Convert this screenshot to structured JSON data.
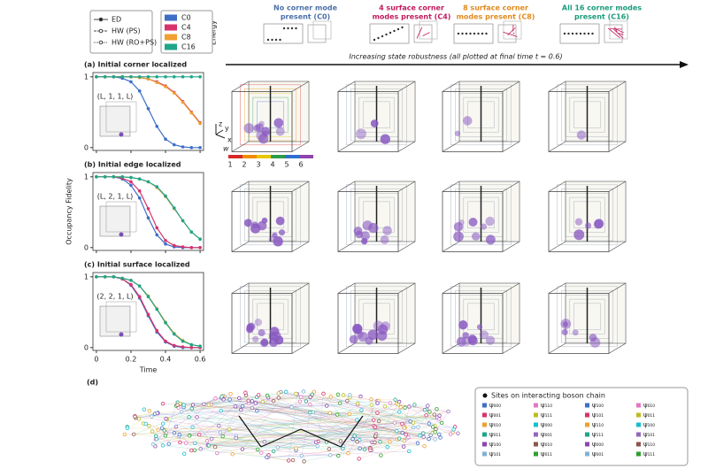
{
  "header": {
    "columns": [
      {
        "line1": "No corner mode",
        "line2": "present (C0)",
        "color": "#4a6fa8"
      },
      {
        "line1": "4 surface corner",
        "line2": "modes present (C4)",
        "color": "#c2185b"
      },
      {
        "line1": "8 surface corner",
        "line2": "modes present (C8)",
        "color": "#e08a1e"
      },
      {
        "line1": "All 16 corner modes",
        "line2": "present (C16)",
        "color": "#1a9a7a"
      }
    ],
    "energy_label": "Energy",
    "arrow_text": "Increasing state robustness (all plotted at final time t = 0.6)"
  },
  "style_legend": [
    "ED",
    "HW (PS)",
    "HW (RO+PS)"
  ],
  "axes_icon": [
    "z",
    "y",
    "x"
  ],
  "colorbar": {
    "label": "w",
    "ticks": [
      1,
      2,
      3,
      4,
      5,
      6
    ],
    "colors": [
      "#d62828",
      "#f08c00",
      "#e9c700",
      "#2a9d4a",
      "#2f6fd0",
      "#8e44ad"
    ]
  },
  "chart_data": [
    {
      "type": "line",
      "title": "(a) Initial corner localized",
      "inset_label": "(L, 1, 1, L)",
      "x": [
        0,
        0.05,
        0.1,
        0.15,
        0.2,
        0.25,
        0.3,
        0.35,
        0.4,
        0.45,
        0.5,
        0.55,
        0.6
      ],
      "xlim": [
        -0.02,
        0.62
      ],
      "ylim": [
        -0.04,
        1.06
      ],
      "xticks": [
        0,
        0.2,
        0.4,
        0.6
      ],
      "yticks": [
        0,
        1
      ],
      "xtick_labels": false,
      "series": [
        {
          "name": "C0",
          "color": "#3d6fc6",
          "values": [
            1,
            1,
            1,
            0.98,
            0.93,
            0.8,
            0.55,
            0.3,
            0.12,
            0.04,
            0.01,
            0,
            0
          ]
        },
        {
          "name": "C4",
          "color": "#d6336c",
          "values": [
            1,
            1,
            1,
            1,
            1,
            0.99,
            0.97,
            0.93,
            0.87,
            0.78,
            0.65,
            0.5,
            0.35
          ]
        },
        {
          "name": "C8",
          "color": "#f0a030",
          "values": [
            1,
            1,
            1,
            1,
            1,
            0.99,
            0.97,
            0.92,
            0.86,
            0.77,
            0.64,
            0.49,
            0.34
          ]
        },
        {
          "name": "C16",
          "color": "#1fa58a",
          "values": [
            1,
            1,
            1,
            1,
            1,
            1,
            1,
            1,
            1,
            1,
            1,
            1,
            1
          ]
        }
      ]
    },
    {
      "type": "line",
      "title": "(b) Initial edge localized",
      "inset_label": "(L, 2, 1, L)",
      "ylabel": "Occupancy Fidelity",
      "x": [
        0,
        0.05,
        0.1,
        0.15,
        0.2,
        0.25,
        0.3,
        0.35,
        0.4,
        0.45,
        0.5,
        0.55,
        0.6
      ],
      "xlim": [
        -0.02,
        0.62
      ],
      "ylim": [
        -0.04,
        1.06
      ],
      "xticks": [
        0,
        0.2,
        0.4,
        0.6
      ],
      "yticks": [
        0,
        1
      ],
      "xtick_labels": false,
      "series": [
        {
          "name": "C0",
          "color": "#3d6fc6",
          "values": [
            1,
            1,
            1,
            0.97,
            0.88,
            0.7,
            0.42,
            0.18,
            0.05,
            0.01,
            0,
            0,
            0
          ]
        },
        {
          "name": "C4",
          "color": "#d6336c",
          "values": [
            1,
            1,
            1,
            0.98,
            0.93,
            0.8,
            0.55,
            0.28,
            0.1,
            0.03,
            0.01,
            0,
            0
          ]
        },
        {
          "name": "C8",
          "color": "#f0a030",
          "values": [
            1,
            1,
            1,
            1,
            0.99,
            0.97,
            0.93,
            0.85,
            0.72,
            0.55,
            0.38,
            0.22,
            0.12
          ]
        },
        {
          "name": "C16",
          "color": "#1fa58a",
          "values": [
            1,
            1,
            1,
            1,
            0.99,
            0.97,
            0.93,
            0.86,
            0.73,
            0.56,
            0.38,
            0.22,
            0.12
          ]
        }
      ]
    },
    {
      "type": "line",
      "title": "(c) Initial surface localized",
      "inset_label": "(2, 2, 1, L)",
      "xlabel": "Time",
      "x": [
        0,
        0.05,
        0.1,
        0.15,
        0.2,
        0.25,
        0.3,
        0.35,
        0.4,
        0.45,
        0.5,
        0.55,
        0.6
      ],
      "xlim": [
        -0.02,
        0.62
      ],
      "ylim": [
        -0.04,
        1.06
      ],
      "xticks": [
        0,
        0.2,
        0.4,
        0.6
      ],
      "yticks": [
        0,
        1
      ],
      "xtick_labels": true,
      "series": [
        {
          "name": "C0",
          "color": "#3d6fc6",
          "values": [
            1,
            1,
            1,
            0.97,
            0.88,
            0.7,
            0.45,
            0.22,
            0.08,
            0.02,
            0,
            0,
            0
          ]
        },
        {
          "name": "C4",
          "color": "#d6336c",
          "values": [
            1,
            1,
            1,
            0.97,
            0.89,
            0.72,
            0.47,
            0.24,
            0.09,
            0.03,
            0.01,
            0,
            0
          ]
        },
        {
          "name": "C8",
          "color": "#f0a030",
          "values": [
            1,
            1,
            1,
            0.98,
            0.95,
            0.87,
            0.73,
            0.55,
            0.36,
            0.2,
            0.1,
            0.04,
            0.02
          ]
        },
        {
          "name": "C16",
          "color": "#1fa58a",
          "values": [
            1,
            1,
            1,
            0.98,
            0.95,
            0.87,
            0.72,
            0.54,
            0.35,
            0.19,
            0.09,
            0.04,
            0.02
          ]
        }
      ]
    }
  ],
  "panel_d": {
    "label": "(d)",
    "legend_title": "Sites on interacting boson chain",
    "entries": [
      "ψ₀₀₀",
      "ψ₀₀₁",
      "ψ₀₁₀",
      "ψ₀₁₁",
      "ψ₁₀₀",
      "ψ₁₀₁",
      "ψ₁₁₀",
      "ψ₁₁₁",
      "ψ₀₀₀",
      "ψ₀₀₁",
      "ψ₀₁₀",
      "ψ₀₁₁",
      "ψ₁₀₀",
      "ψ₁₀₁",
      "ψ₁₁₀",
      "ψ₁₁₁",
      "ψ₀₀₀",
      "ψ₀₀₁",
      "ψ₀₁₀",
      "ψ₀₁₁",
      "ψ₁₀₀",
      "ψ₁₀₁",
      "ψ₁₁₀",
      "ψ₁₁₁"
    ],
    "entry_colors": [
      "#3d6fc6",
      "#d6336c",
      "#f0a030",
      "#1fa58a",
      "#8e44ad",
      "#7fb3d5",
      "#e377c2",
      "#bcbd22",
      "#17becf",
      "#9467bd",
      "#8c564b",
      "#2ca02c"
    ]
  }
}
